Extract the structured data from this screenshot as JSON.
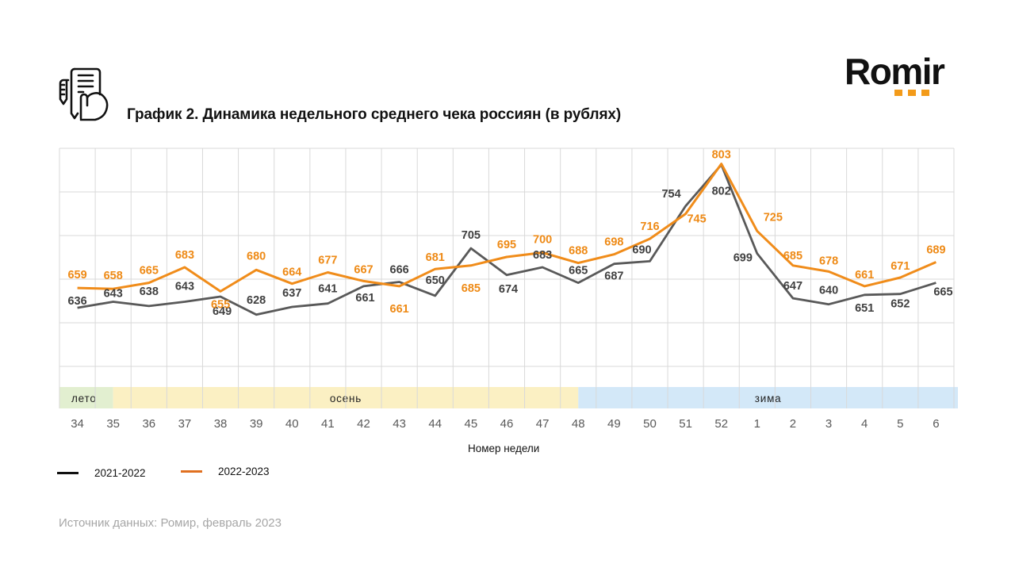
{
  "header": {
    "title": "График 2. Динамика недельного среднего чека россиян (в рублях)",
    "icon": "receipt-hand-icon",
    "logo_text": "Romir"
  },
  "colors": {
    "series_2021_2022": "#595959",
    "series_2022_2023": "#f08c1a",
    "season_summer": "#e2efd0",
    "season_autumn": "#fbf0c3",
    "season_winter": "#d3e8f8",
    "logo_accent": "#f39b1a"
  },
  "chart_data": {
    "type": "line",
    "title": "График 2. Динамика недельного среднего чека россиян (в рублях)",
    "xlabel": "Номер недели",
    "ylabel": "",
    "categories": [
      "34",
      "35",
      "36",
      "37",
      "38",
      "39",
      "40",
      "41",
      "42",
      "43",
      "44",
      "45",
      "46",
      "47",
      "48",
      "49",
      "50",
      "51",
      "52",
      "1",
      "2",
      "3",
      "4",
      "5",
      "6"
    ],
    "series": [
      {
        "name": "2021-2022",
        "values": [
          636,
          643,
          638,
          643,
          649,
          628,
          637,
          641,
          661,
          666,
          650,
          705,
          674,
          683,
          665,
          687,
          690,
          754,
          802,
          699,
          647,
          640,
          651,
          652,
          665
        ]
      },
      {
        "name": "2022-2023",
        "values": [
          659,
          658,
          665,
          683,
          655,
          680,
          664,
          677,
          667,
          661,
          681,
          685,
          695,
          700,
          688,
          698,
          716,
          745,
          803,
          725,
          685,
          678,
          661,
          671,
          689
        ]
      }
    ],
    "ylim": [
      568,
      821
    ],
    "y_gridlines": 6,
    "grid": true,
    "y_tick_labels_shown": false,
    "seasons": [
      {
        "label": "лето",
        "from": "34",
        "to": "35"
      },
      {
        "label": "осень",
        "from": "35",
        "to": "48"
      },
      {
        "label": "зима",
        "from": "48",
        "to": "6"
      }
    ],
    "legend": [
      "2021-2022",
      "2022-2023"
    ],
    "legend_position": "bottom-left"
  },
  "footer": {
    "source": "Источник данных: Ромир, февраль 2023"
  }
}
